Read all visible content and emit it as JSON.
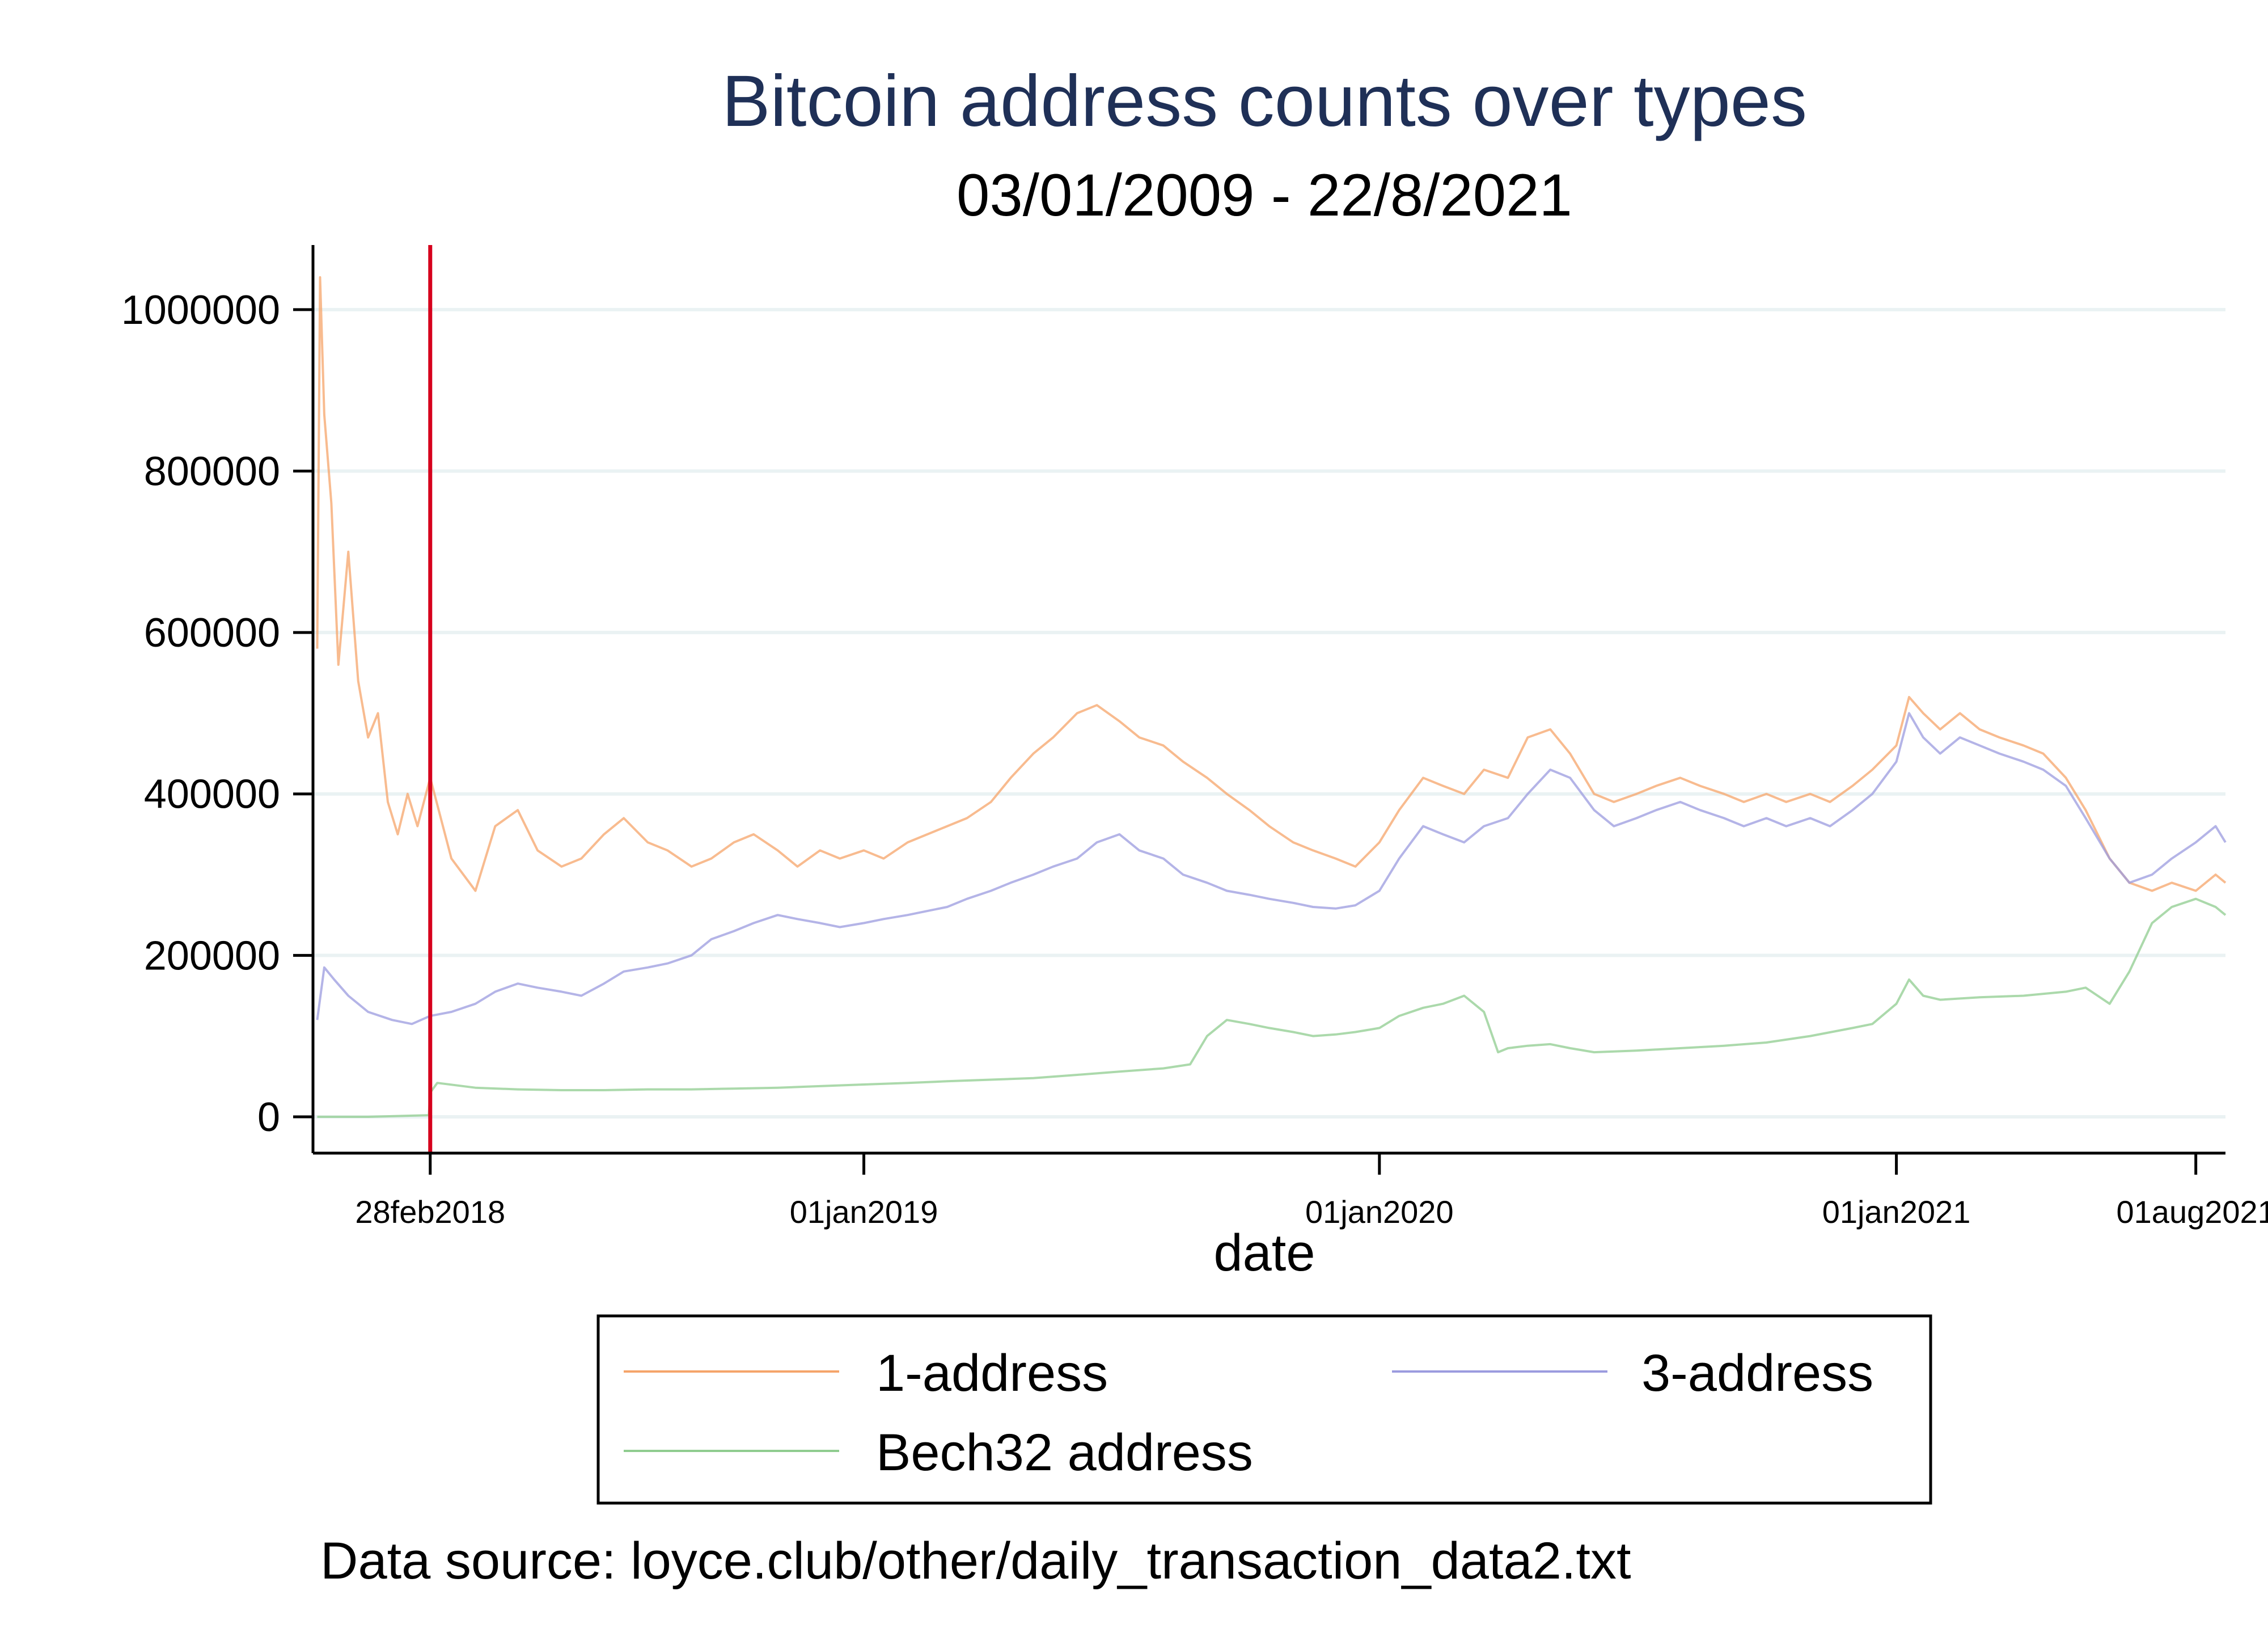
{
  "chart_data": {
    "type": "line",
    "title": "Bitcoin address counts over types",
    "subtitle": "03/01/2009 - 22/8/2021",
    "xlabel": "date",
    "ylabel": "",
    "ylim": [
      -45000,
      1080000
    ],
    "xlim": [
      "2017-12-07",
      "2021-08-22"
    ],
    "y_ticks": [
      0,
      200000,
      400000,
      600000,
      800000,
      1000000
    ],
    "y_tick_labels": [
      "0",
      "200000",
      "400000",
      "600000",
      "800000",
      "1000000"
    ],
    "x_ticks": [
      {
        "date": "2018-02-28",
        "label": "28feb2018"
      },
      {
        "date": "2019-01-01",
        "label": "01jan2019"
      },
      {
        "date": "2020-01-01",
        "label": "01jan2020"
      },
      {
        "date": "2021-01-01",
        "label": "01jan2021"
      },
      {
        "date": "2021-08-01",
        "label": "01aug2021"
      }
    ],
    "grid": true,
    "vertical_marker": {
      "date": "2018-02-28",
      "color": "#d6001c"
    },
    "legend_placement": "bottom",
    "series": [
      {
        "name": "1-address",
        "color": "#f5a46a",
        "points": [
          [
            "2017-12-10",
            580000
          ],
          [
            "2017-12-12",
            1040000
          ],
          [
            "2017-12-15",
            870000
          ],
          [
            "2017-12-20",
            760000
          ],
          [
            "2017-12-25",
            560000
          ],
          [
            "2018-01-01",
            700000
          ],
          [
            "2018-01-08",
            540000
          ],
          [
            "2018-01-15",
            470000
          ],
          [
            "2018-01-22",
            500000
          ],
          [
            "2018-01-29",
            390000
          ],
          [
            "2018-02-05",
            350000
          ],
          [
            "2018-02-12",
            400000
          ],
          [
            "2018-02-19",
            360000
          ],
          [
            "2018-02-28",
            420000
          ],
          [
            "2018-03-15",
            320000
          ],
          [
            "2018-04-01",
            280000
          ],
          [
            "2018-04-15",
            360000
          ],
          [
            "2018-05-01",
            380000
          ],
          [
            "2018-05-15",
            330000
          ],
          [
            "2018-06-01",
            310000
          ],
          [
            "2018-06-15",
            320000
          ],
          [
            "2018-07-01",
            350000
          ],
          [
            "2018-07-15",
            370000
          ],
          [
            "2018-08-01",
            340000
          ],
          [
            "2018-08-15",
            330000
          ],
          [
            "2018-09-01",
            310000
          ],
          [
            "2018-09-15",
            320000
          ],
          [
            "2018-10-01",
            340000
          ],
          [
            "2018-10-15",
            350000
          ],
          [
            "2018-11-01",
            330000
          ],
          [
            "2018-11-15",
            310000
          ],
          [
            "2018-12-01",
            330000
          ],
          [
            "2018-12-15",
            320000
          ],
          [
            "2019-01-01",
            330000
          ],
          [
            "2019-01-15",
            320000
          ],
          [
            "2019-02-01",
            340000
          ],
          [
            "2019-02-15",
            350000
          ],
          [
            "2019-03-01",
            360000
          ],
          [
            "2019-03-15",
            370000
          ],
          [
            "2019-04-01",
            390000
          ],
          [
            "2019-04-15",
            420000
          ],
          [
            "2019-05-01",
            450000
          ],
          [
            "2019-05-15",
            470000
          ],
          [
            "2019-06-01",
            500000
          ],
          [
            "2019-06-15",
            510000
          ],
          [
            "2019-07-01",
            490000
          ],
          [
            "2019-07-15",
            470000
          ],
          [
            "2019-08-01",
            460000
          ],
          [
            "2019-08-15",
            440000
          ],
          [
            "2019-09-01",
            420000
          ],
          [
            "2019-09-15",
            400000
          ],
          [
            "2019-10-01",
            380000
          ],
          [
            "2019-10-15",
            360000
          ],
          [
            "2019-11-01",
            340000
          ],
          [
            "2019-11-15",
            330000
          ],
          [
            "2019-12-01",
            320000
          ],
          [
            "2019-12-15",
            310000
          ],
          [
            "2020-01-01",
            340000
          ],
          [
            "2020-01-15",
            380000
          ],
          [
            "2020-02-01",
            420000
          ],
          [
            "2020-02-15",
            410000
          ],
          [
            "2020-03-01",
            400000
          ],
          [
            "2020-03-15",
            430000
          ],
          [
            "2020-04-01",
            420000
          ],
          [
            "2020-04-15",
            470000
          ],
          [
            "2020-05-01",
            480000
          ],
          [
            "2020-05-15",
            450000
          ],
          [
            "2020-06-01",
            400000
          ],
          [
            "2020-06-15",
            390000
          ],
          [
            "2020-07-01",
            400000
          ],
          [
            "2020-07-15",
            410000
          ],
          [
            "2020-08-01",
            420000
          ],
          [
            "2020-08-15",
            410000
          ],
          [
            "2020-09-01",
            400000
          ],
          [
            "2020-09-15",
            390000
          ],
          [
            "2020-10-01",
            400000
          ],
          [
            "2020-10-15",
            390000
          ],
          [
            "2020-11-01",
            400000
          ],
          [
            "2020-11-15",
            390000
          ],
          [
            "2020-12-01",
            410000
          ],
          [
            "2020-12-15",
            430000
          ],
          [
            "2021-01-01",
            460000
          ],
          [
            "2021-01-10",
            520000
          ],
          [
            "2021-01-20",
            500000
          ],
          [
            "2021-02-01",
            480000
          ],
          [
            "2021-02-15",
            500000
          ],
          [
            "2021-03-01",
            480000
          ],
          [
            "2021-03-15",
            470000
          ],
          [
            "2021-04-01",
            460000
          ],
          [
            "2021-04-15",
            450000
          ],
          [
            "2021-05-01",
            420000
          ],
          [
            "2021-05-15",
            380000
          ],
          [
            "2021-06-01",
            320000
          ],
          [
            "2021-06-15",
            290000
          ],
          [
            "2021-07-01",
            280000
          ],
          [
            "2021-07-15",
            290000
          ],
          [
            "2021-08-01",
            280000
          ],
          [
            "2021-08-15",
            300000
          ],
          [
            "2021-08-22",
            290000
          ]
        ]
      },
      {
        "name": "3-address",
        "color": "#9b9bdf",
        "points": [
          [
            "2017-12-10",
            120000
          ],
          [
            "2017-12-15",
            185000
          ],
          [
            "2017-12-22",
            170000
          ],
          [
            "2018-01-01",
            150000
          ],
          [
            "2018-01-15",
            130000
          ],
          [
            "2018-02-01",
            120000
          ],
          [
            "2018-02-15",
            115000
          ],
          [
            "2018-02-28",
            125000
          ],
          [
            "2018-03-15",
            130000
          ],
          [
            "2018-04-01",
            140000
          ],
          [
            "2018-04-15",
            155000
          ],
          [
            "2018-05-01",
            165000
          ],
          [
            "2018-05-15",
            160000
          ],
          [
            "2018-06-01",
            155000
          ],
          [
            "2018-06-15",
            150000
          ],
          [
            "2018-07-01",
            165000
          ],
          [
            "2018-07-15",
            180000
          ],
          [
            "2018-08-01",
            185000
          ],
          [
            "2018-08-15",
            190000
          ],
          [
            "2018-09-01",
            200000
          ],
          [
            "2018-09-15",
            220000
          ],
          [
            "2018-10-01",
            230000
          ],
          [
            "2018-10-15",
            240000
          ],
          [
            "2018-11-01",
            250000
          ],
          [
            "2018-11-15",
            245000
          ],
          [
            "2018-12-01",
            240000
          ],
          [
            "2018-12-15",
            235000
          ],
          [
            "2019-01-01",
            240000
          ],
          [
            "2019-01-15",
            245000
          ],
          [
            "2019-02-01",
            250000
          ],
          [
            "2019-02-15",
            255000
          ],
          [
            "2019-03-01",
            260000
          ],
          [
            "2019-03-15",
            270000
          ],
          [
            "2019-04-01",
            280000
          ],
          [
            "2019-04-15",
            290000
          ],
          [
            "2019-05-01",
            300000
          ],
          [
            "2019-05-15",
            310000
          ],
          [
            "2019-06-01",
            320000
          ],
          [
            "2019-06-15",
            340000
          ],
          [
            "2019-07-01",
            350000
          ],
          [
            "2019-07-15",
            330000
          ],
          [
            "2019-08-01",
            320000
          ],
          [
            "2019-08-15",
            300000
          ],
          [
            "2019-09-01",
            290000
          ],
          [
            "2019-09-15",
            280000
          ],
          [
            "2019-10-01",
            275000
          ],
          [
            "2019-10-15",
            270000
          ],
          [
            "2019-11-01",
            265000
          ],
          [
            "2019-11-15",
            260000
          ],
          [
            "2019-12-01",
            258000
          ],
          [
            "2019-12-15",
            262000
          ],
          [
            "2020-01-01",
            280000
          ],
          [
            "2020-01-15",
            320000
          ],
          [
            "2020-02-01",
            360000
          ],
          [
            "2020-02-15",
            350000
          ],
          [
            "2020-03-01",
            340000
          ],
          [
            "2020-03-15",
            360000
          ],
          [
            "2020-04-01",
            370000
          ],
          [
            "2020-04-15",
            400000
          ],
          [
            "2020-05-01",
            430000
          ],
          [
            "2020-05-15",
            420000
          ],
          [
            "2020-06-01",
            380000
          ],
          [
            "2020-06-15",
            360000
          ],
          [
            "2020-07-01",
            370000
          ],
          [
            "2020-07-15",
            380000
          ],
          [
            "2020-08-01",
            390000
          ],
          [
            "2020-08-15",
            380000
          ],
          [
            "2020-09-01",
            370000
          ],
          [
            "2020-09-15",
            360000
          ],
          [
            "2020-10-01",
            370000
          ],
          [
            "2020-10-15",
            360000
          ],
          [
            "2020-11-01",
            370000
          ],
          [
            "2020-11-15",
            360000
          ],
          [
            "2020-12-01",
            380000
          ],
          [
            "2020-12-15",
            400000
          ],
          [
            "2021-01-01",
            440000
          ],
          [
            "2021-01-10",
            500000
          ],
          [
            "2021-01-20",
            470000
          ],
          [
            "2021-02-01",
            450000
          ],
          [
            "2021-02-15",
            470000
          ],
          [
            "2021-03-01",
            460000
          ],
          [
            "2021-03-15",
            450000
          ],
          [
            "2021-04-01",
            440000
          ],
          [
            "2021-04-15",
            430000
          ],
          [
            "2021-05-01",
            410000
          ],
          [
            "2021-05-15",
            370000
          ],
          [
            "2021-06-01",
            320000
          ],
          [
            "2021-06-15",
            290000
          ],
          [
            "2021-07-01",
            300000
          ],
          [
            "2021-07-15",
            320000
          ],
          [
            "2021-08-01",
            340000
          ],
          [
            "2021-08-15",
            360000
          ],
          [
            "2021-08-22",
            340000
          ]
        ]
      },
      {
        "name": "Bech32 address",
        "color": "#8fcc8f",
        "points": [
          [
            "2017-12-10",
            0
          ],
          [
            "2018-01-15",
            0
          ],
          [
            "2018-02-27",
            2000
          ],
          [
            "2018-02-28",
            30000
          ],
          [
            "2018-03-05",
            42000
          ],
          [
            "2018-04-01",
            36000
          ],
          [
            "2018-05-01",
            34000
          ],
          [
            "2018-06-01",
            33000
          ],
          [
            "2018-07-01",
            33000
          ],
          [
            "2018-08-01",
            34000
          ],
          [
            "2018-09-01",
            34000
          ],
          [
            "2018-10-01",
            35000
          ],
          [
            "2018-11-01",
            36000
          ],
          [
            "2018-12-01",
            38000
          ],
          [
            "2019-01-01",
            40000
          ],
          [
            "2019-02-01",
            42000
          ],
          [
            "2019-03-01",
            44000
          ],
          [
            "2019-04-01",
            46000
          ],
          [
            "2019-05-01",
            48000
          ],
          [
            "2019-06-01",
            52000
          ],
          [
            "2019-07-01",
            56000
          ],
          [
            "2019-08-01",
            60000
          ],
          [
            "2019-08-20",
            65000
          ],
          [
            "2019-09-01",
            100000
          ],
          [
            "2019-09-15",
            120000
          ],
          [
            "2019-10-01",
            115000
          ],
          [
            "2019-10-15",
            110000
          ],
          [
            "2019-11-01",
            105000
          ],
          [
            "2019-11-15",
            100000
          ],
          [
            "2019-12-01",
            102000
          ],
          [
            "2019-12-15",
            105000
          ],
          [
            "2020-01-01",
            110000
          ],
          [
            "2020-01-15",
            125000
          ],
          [
            "2020-02-01",
            135000
          ],
          [
            "2020-02-15",
            140000
          ],
          [
            "2020-03-01",
            150000
          ],
          [
            "2020-03-15",
            130000
          ],
          [
            "2020-03-25",
            80000
          ],
          [
            "2020-04-01",
            85000
          ],
          [
            "2020-04-15",
            88000
          ],
          [
            "2020-05-01",
            90000
          ],
          [
            "2020-05-15",
            85000
          ],
          [
            "2020-06-01",
            80000
          ],
          [
            "2020-07-01",
            82000
          ],
          [
            "2020-08-01",
            85000
          ],
          [
            "2020-09-01",
            88000
          ],
          [
            "2020-10-01",
            92000
          ],
          [
            "2020-11-01",
            100000
          ],
          [
            "2020-12-01",
            110000
          ],
          [
            "2020-12-15",
            115000
          ],
          [
            "2021-01-01",
            140000
          ],
          [
            "2021-01-10",
            170000
          ],
          [
            "2021-01-20",
            150000
          ],
          [
            "2021-02-01",
            145000
          ],
          [
            "2021-03-01",
            148000
          ],
          [
            "2021-04-01",
            150000
          ],
          [
            "2021-05-01",
            155000
          ],
          [
            "2021-05-15",
            160000
          ],
          [
            "2021-06-01",
            140000
          ],
          [
            "2021-06-15",
            180000
          ],
          [
            "2021-07-01",
            240000
          ],
          [
            "2021-07-15",
            260000
          ],
          [
            "2021-08-01",
            270000
          ],
          [
            "2021-08-15",
            260000
          ],
          [
            "2021-08-22",
            250000
          ]
        ]
      }
    ],
    "legend": [
      "1-address",
      "3-address",
      "Bech32 address"
    ],
    "annotation": "Data source: loyce.club/other/daily_transaction_data2.txt"
  },
  "colors": {
    "title": "#1f3057",
    "axis": "#000000",
    "grid": "#eaf2f3",
    "marker": "#d6001c"
  }
}
